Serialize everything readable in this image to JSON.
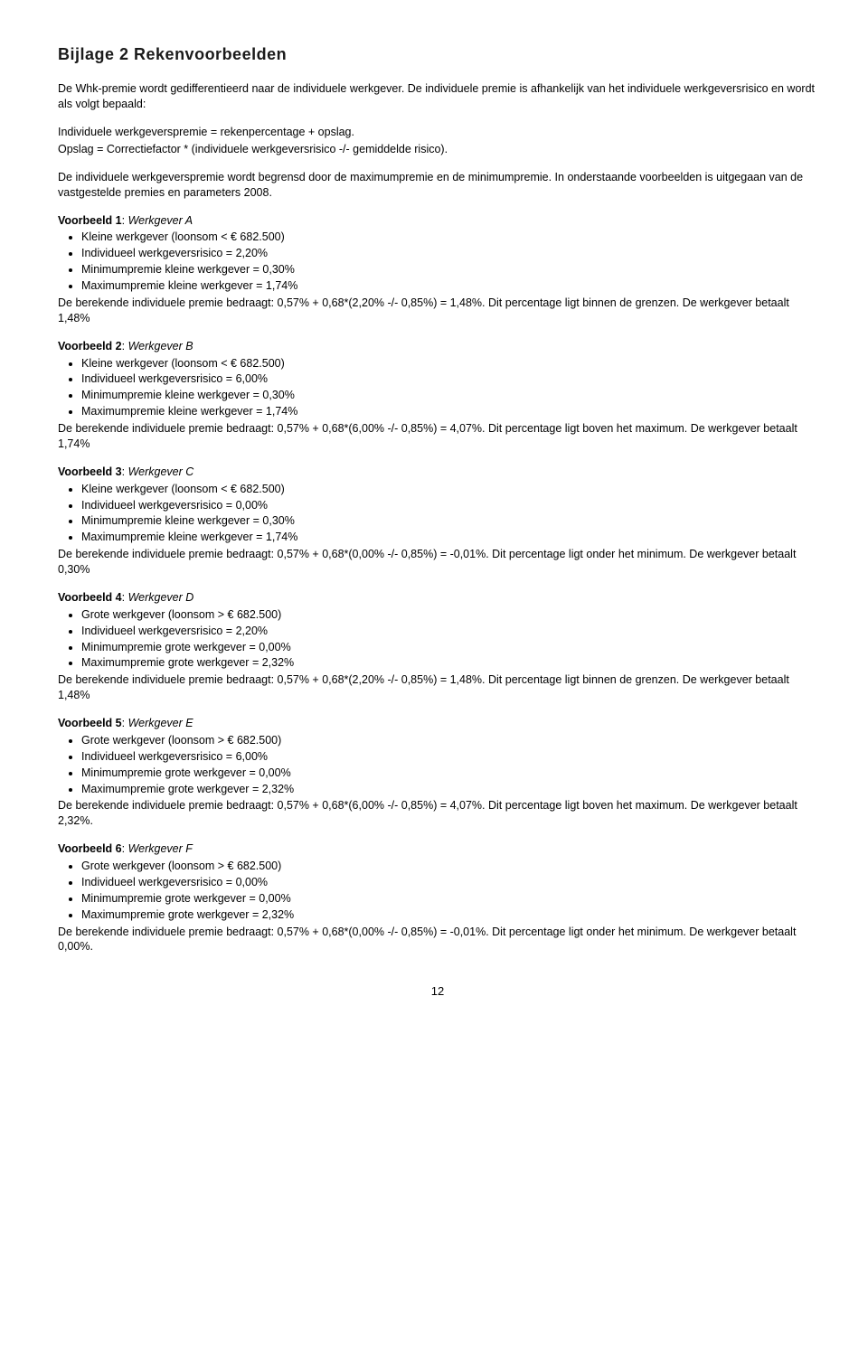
{
  "title": "Bijlage 2    Rekenvoorbeelden",
  "intro": "De Whk-premie wordt gedifferentieerd naar de individuele werkgever. De individuele premie is afhankelijk van het individuele werkgeversrisico en wordt als volgt bepaald:",
  "formula1": "Individuele werkgeverspremie = rekenpercentage + opslag.",
  "formula2": "Opslag = Correctiefactor * (individuele werkgeversrisico -/- gemiddelde risico).",
  "bound_text": "De individuele werkgeverspremie wordt begrensd door de maximumpremie en de minimumpremie. In onderstaande voorbeelden is uitgegaan van de vastgestelde premies en parameters 2008.",
  "examples": [
    {
      "label": "Voorbeeld 1",
      "name": "Werkgever A",
      "bullets": [
        "Kleine werkgever (loonsom < € 682.500)",
        "Individueel werkgeversrisico = 2,20%",
        "Minimumpremie kleine werkgever = 0,30%",
        "Maximumpremie kleine werkgever = 1,74%"
      ],
      "conclusion": "De berekende individuele premie bedraagt: 0,57% + 0,68*(2,20% -/- 0,85%) = 1,48%. Dit percentage ligt binnen de grenzen. De werkgever betaalt 1,48%"
    },
    {
      "label": "Voorbeeld 2",
      "name": "Werkgever B",
      "bullets": [
        "Kleine werkgever (loonsom < € 682.500)",
        "Individueel werkgeversrisico = 6,00%",
        "Minimumpremie kleine werkgever = 0,30%",
        "Maximumpremie kleine werkgever = 1,74%"
      ],
      "conclusion": "De berekende individuele premie bedraagt: 0,57% + 0,68*(6,00% -/- 0,85%) = 4,07%. Dit percentage ligt boven het maximum. De werkgever betaalt 1,74%"
    },
    {
      "label": "Voorbeeld 3",
      "name": "Werkgever C",
      "bullets": [
        "Kleine werkgever (loonsom < € 682.500)",
        "Individueel werkgeversrisico = 0,00%",
        "Minimumpremie kleine werkgever = 0,30%",
        "Maximumpremie kleine werkgever = 1,74%"
      ],
      "conclusion": "De berekende individuele premie bedraagt: 0,57% + 0,68*(0,00% -/- 0,85%) = -0,01%. Dit percentage ligt onder het minimum. De werkgever betaalt 0,30%"
    },
    {
      "label": "Voorbeeld 4",
      "name": "Werkgever D",
      "bullets": [
        "Grote werkgever (loonsom > € 682.500)",
        "Individueel werkgeversrisico = 2,20%",
        "Minimumpremie grote werkgever = 0,00%",
        "Maximumpremie grote werkgever = 2,32%"
      ],
      "conclusion": "De berekende individuele premie bedraagt: 0,57% + 0,68*(2,20% -/- 0,85%) = 1,48%. Dit percentage ligt binnen de grenzen. De werkgever betaalt 1,48%"
    },
    {
      "label": "Voorbeeld 5",
      "name": "Werkgever E",
      "bullets": [
        "Grote werkgever (loonsom > € 682.500)",
        "Individueel werkgeversrisico = 6,00%",
        "Minimumpremie grote werkgever = 0,00%",
        "Maximumpremie grote werkgever = 2,32%"
      ],
      "conclusion": "De berekende individuele premie bedraagt: 0,57% + 0,68*(6,00% -/- 0,85%) = 4,07%. Dit percentage ligt boven het maximum. De werkgever betaalt 2,32%."
    },
    {
      "label": "Voorbeeld 6",
      "name": "Werkgever F",
      "bullets": [
        "Grote werkgever (loonsom > € 682.500)",
        "Individueel werkgeversrisico = 0,00%",
        "Minimumpremie grote werkgever = 0,00%",
        "Maximumpremie grote werkgever = 2,32%"
      ],
      "conclusion": "De berekende individuele premie bedraagt: 0,57% + 0,68*(0,00% -/- 0,85%) = -0,01%. Dit percentage ligt onder het minimum. De werkgever betaalt 0,00%."
    }
  ],
  "page_number": "12"
}
